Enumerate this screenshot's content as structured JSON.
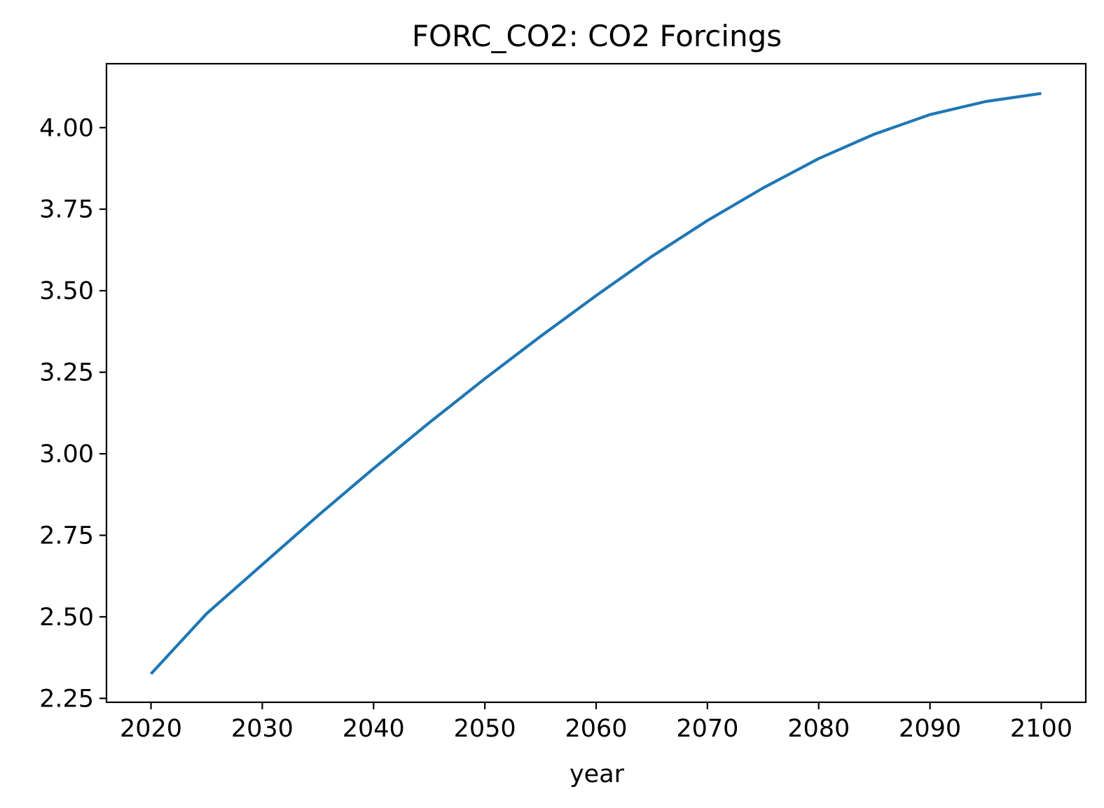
{
  "chart_data": {
    "type": "line",
    "title": "FORC_CO2: CO2 Forcings",
    "xlabel": "year",
    "ylabel": "",
    "xlim": [
      2016,
      2104
    ],
    "ylim": [
      2.238,
      4.196
    ],
    "x_ticks": [
      2020,
      2030,
      2040,
      2050,
      2060,
      2070,
      2080,
      2090,
      2100
    ],
    "y_ticks": [
      2.25,
      2.5,
      2.75,
      3.0,
      3.25,
      3.5,
      3.75,
      4.0
    ],
    "x_tick_labels": [
      "2020",
      "2030",
      "2040",
      "2050",
      "2060",
      "2070",
      "2080",
      "2090",
      "2100"
    ],
    "y_tick_labels": [
      "2.25",
      "2.50",
      "2.75",
      "3.00",
      "3.25",
      "3.50",
      "3.75",
      "4.00"
    ],
    "grid": false,
    "legend": "none",
    "series": [
      {
        "color": "#1f77b4",
        "x": [
          2020,
          2025,
          2030,
          2035,
          2040,
          2045,
          2050,
          2055,
          2060,
          2065,
          2070,
          2075,
          2080,
          2085,
          2090,
          2095,
          2100
        ],
        "y": [
          2.325,
          2.51,
          2.66,
          2.81,
          2.955,
          3.095,
          3.23,
          3.36,
          3.485,
          3.605,
          3.715,
          3.815,
          3.905,
          3.98,
          4.04,
          4.08,
          4.105
        ]
      }
    ]
  }
}
